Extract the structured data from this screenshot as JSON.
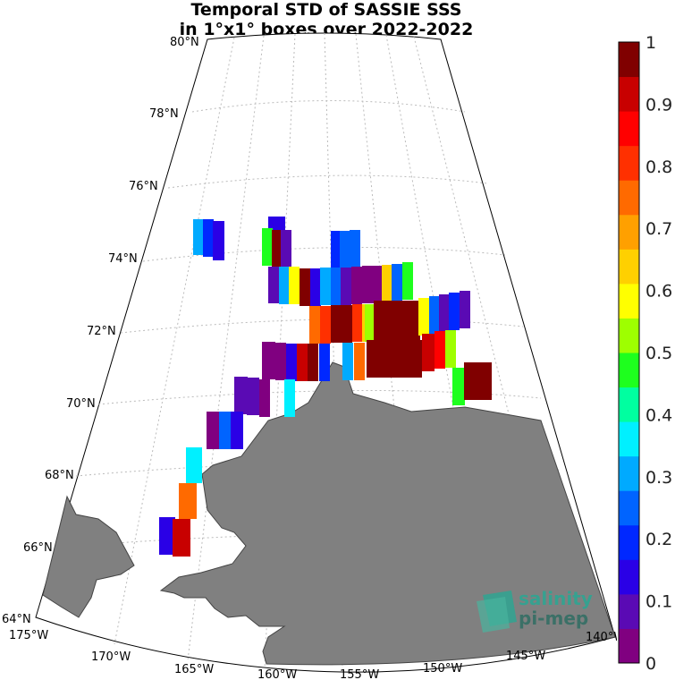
{
  "title": {
    "line1": "Temporal STD of SASSIE SSS",
    "line2": "in 1°x1° boxes over 2022-2022"
  },
  "map": {
    "lat_labels": [
      "80°N",
      "78°N",
      "76°N",
      "74°N",
      "72°N",
      "70°N",
      "68°N",
      "66°N",
      "64°N"
    ],
    "lon_labels": [
      "175°W",
      "170°W",
      "165°W",
      "160°W",
      "155°W",
      "150°W",
      "145°W",
      "140°W"
    ],
    "land_color": "#808080",
    "colorscale": [
      "#800080",
      "#5a0ab4",
      "#2a00e6",
      "#0028ff",
      "#0064ff",
      "#00aaff",
      "#00f0ff",
      "#00ffa0",
      "#1eff1e",
      "#9eff00",
      "#ffff00",
      "#ffd000",
      "#ffa000",
      "#ff6a00",
      "#ff3000",
      "#ff0000",
      "#c80000",
      "#800000"
    ]
  },
  "colorbar": {
    "ticks": [
      "0",
      "0.1",
      "0.2",
      "0.3",
      "0.4",
      "0.5",
      "0.6",
      "0.7",
      "0.8",
      "0.9",
      "1"
    ],
    "min": 0,
    "max": 1
  },
  "logo": {
    "line1": "salinity",
    "line2": "pi-mep"
  }
}
